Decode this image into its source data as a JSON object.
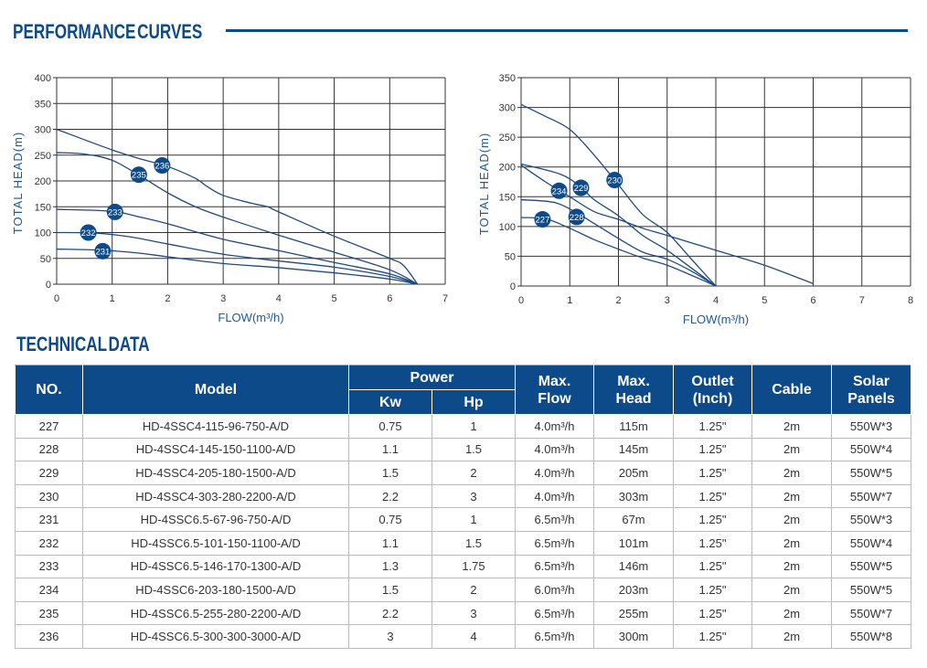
{
  "titles": {
    "performance": "PERFORMANCE CURVES",
    "technical": "TECHNICAL DATA"
  },
  "colors": {
    "primary": "#0d4a8a",
    "line": "#1f4a80"
  },
  "chart_data": [
    {
      "type": "line",
      "xlabel": "FLOW(m³/h)",
      "ylabel": "TOTAL HEAD(m)",
      "xlim": [
        0,
        7
      ],
      "ylim": [
        0,
        400
      ],
      "xticks": [
        0,
        1,
        2,
        3,
        4,
        5,
        6,
        7
      ],
      "yticks": [
        0,
        50,
        100,
        150,
        200,
        250,
        300,
        350,
        400
      ],
      "grid": true,
      "series": [
        {
          "name": "236",
          "badge": [
            1.9,
            230
          ],
          "points": [
            [
              0,
              300
            ],
            [
              1,
              260
            ],
            [
              1.5,
              243
            ],
            [
              2,
              228
            ],
            [
              2.5,
              205
            ],
            [
              2.7,
              190
            ],
            [
              3,
              172
            ],
            [
              3.5,
              157
            ],
            [
              3.8,
              150
            ],
            [
              4,
              140
            ],
            [
              5,
              93
            ],
            [
              6,
              50
            ],
            [
              6.25,
              36
            ],
            [
              6.5,
              0
            ]
          ]
        },
        {
          "name": "235",
          "badge": [
            1.48,
            212
          ],
          "points": [
            [
              0,
              255
            ],
            [
              0.5,
              252
            ],
            [
              1,
              240
            ],
            [
              1.5,
              210
            ],
            [
              2,
              177
            ],
            [
              2.5,
              150
            ],
            [
              3,
              130
            ],
            [
              4,
              95
            ],
            [
              5,
              62
            ],
            [
              6,
              28
            ],
            [
              6.5,
              0
            ]
          ]
        },
        {
          "name": "233",
          "badge": [
            1.05,
            140
          ],
          "points": [
            [
              0,
              145
            ],
            [
              1,
              141
            ],
            [
              1.5,
              130
            ],
            [
              2,
              117
            ],
            [
              3,
              87
            ],
            [
              4,
              65
            ],
            [
              5,
              42
            ],
            [
              6,
              20
            ],
            [
              6.5,
              0
            ]
          ]
        },
        {
          "name": "232",
          "badge": [
            0.57,
            100
          ],
          "points": [
            [
              0,
              100
            ],
            [
              0.7,
              99
            ],
            [
              1.3,
              92
            ],
            [
              2,
              78
            ],
            [
              3,
              58
            ],
            [
              4,
              45
            ],
            [
              5,
              33
            ],
            [
              6,
              15
            ],
            [
              6.5,
              0
            ]
          ]
        },
        {
          "name": "231",
          "badge": [
            0.83,
            64
          ],
          "points": [
            [
              0,
              68
            ],
            [
              0.8,
              66
            ],
            [
              1.5,
              60
            ],
            [
              2,
              53
            ],
            [
              3,
              40
            ],
            [
              4,
              32
            ],
            [
              5,
              22
            ],
            [
              6,
              10
            ],
            [
              6.5,
              0
            ]
          ]
        }
      ]
    },
    {
      "type": "line",
      "xlabel": "FLOW(m³/h)",
      "ylabel": "TOTAL HEAD(m)",
      "xlim": [
        0,
        8
      ],
      "ylim": [
        0,
        350
      ],
      "xticks": [
        0,
        1,
        2,
        3,
        4,
        5,
        6,
        7,
        8
      ],
      "yticks": [
        0,
        50,
        100,
        150,
        200,
        250,
        300,
        350
      ],
      "grid": true,
      "series": [
        {
          "name": "230",
          "badge": [
            1.92,
            178
          ],
          "points": [
            [
              0,
              305
            ],
            [
              0.5,
              285
            ],
            [
              1,
              263
            ],
            [
              1.5,
              220
            ],
            [
              2,
              170
            ],
            [
              2.5,
              120
            ],
            [
              3,
              90
            ],
            [
              3.5,
              45
            ],
            [
              4,
              0
            ]
          ]
        },
        {
          "name": "229",
          "badge": [
            1.23,
            165
          ],
          "points": [
            [
              0,
              205
            ],
            [
              0.8,
              188
            ],
            [
              1.2,
              168
            ],
            [
              1.5,
              145
            ],
            [
              2,
              118
            ],
            [
              2.5,
              85
            ],
            [
              3,
              60
            ],
            [
              3.5,
              30
            ],
            [
              4,
              0
            ]
          ]
        },
        {
          "name": "234",
          "badge": [
            0.78,
            160
          ],
          "points": [
            [
              0,
              203
            ],
            [
              0.5,
              175
            ],
            [
              1,
              150
            ],
            [
              1.5,
              125
            ],
            [
              2,
              112
            ],
            [
              2.5,
              97
            ],
            [
              3,
              85
            ],
            [
              4,
              60
            ],
            [
              5,
              35
            ],
            [
              6,
              4
            ]
          ]
        },
        {
          "name": "228",
          "badge": [
            1.14,
            116
          ],
          "points": [
            [
              0,
              145
            ],
            [
              0.7,
              140
            ],
            [
              1.2,
              120
            ],
            [
              1.5,
              105
            ],
            [
              2,
              80
            ],
            [
              2.5,
              57
            ],
            [
              3,
              45
            ],
            [
              3.5,
              25
            ],
            [
              4,
              0
            ]
          ]
        },
        {
          "name": "227",
          "badge": [
            0.44,
            112
          ],
          "points": [
            [
              0,
              115
            ],
            [
              0.5,
              113
            ],
            [
              1,
              97
            ],
            [
              1.5,
              78
            ],
            [
              2,
              62
            ],
            [
              2.5,
              47
            ],
            [
              3,
              35
            ],
            [
              3.5,
              18
            ],
            [
              4,
              0
            ]
          ]
        }
      ]
    }
  ],
  "table": {
    "headers": {
      "no": "NO.",
      "model": "Model",
      "power": "Power",
      "kw": "Kw",
      "hp": "Hp",
      "flow": "Max.\nFlow",
      "head": "Max.\nHead",
      "outlet": "Outlet\n(Inch)",
      "cable": "Cable",
      "solar": "Solar\nPanels"
    },
    "rows": [
      [
        "227",
        "HD-4SSC4-115-96-750-A/D",
        "0.75",
        "1",
        "4.0m³/h",
        "115m",
        "1.25\"",
        "2m",
        "550W*3"
      ],
      [
        "228",
        "HD-4SSC4-145-150-1100-A/D",
        "1.1",
        "1.5",
        "4.0m³/h",
        "145m",
        "1.25\"",
        "2m",
        "550W*4"
      ],
      [
        "229",
        "HD-4SSC4-205-180-1500-A/D",
        "1.5",
        "2",
        "4.0m³/h",
        "205m",
        "1.25\"",
        "2m",
        "550W*5"
      ],
      [
        "230",
        "HD-4SSC4-303-280-2200-A/D",
        "2.2",
        "3",
        "4.0m³/h",
        "303m",
        "1.25\"",
        "2m",
        "550W*7"
      ],
      [
        "231",
        "HD-4SSC6.5-67-96-750-A/D",
        "0.75",
        "1",
        "6.5m³/h",
        "67m",
        "1.25\"",
        "2m",
        "550W*3"
      ],
      [
        "232",
        "HD-4SSC6.5-101-150-1100-A/D",
        "1.1",
        "1.5",
        "6.5m³/h",
        "101m",
        "1.25\"",
        "2m",
        "550W*4"
      ],
      [
        "233",
        "HD-4SSC6.5-146-170-1300-A/D",
        "1.3",
        "1.75",
        "6.5m³/h",
        "146m",
        "1.25\"",
        "2m",
        "550W*5"
      ],
      [
        "234",
        "HD-4SSC6-203-180-1500-A/D",
        "1.5",
        "2",
        "6.0m³/h",
        "203m",
        "1.25\"",
        "2m",
        "550W*5"
      ],
      [
        "235",
        "HD-4SSC6.5-255-280-2200-A/D",
        "2.2",
        "3",
        "6.5m³/h",
        "255m",
        "1.25\"",
        "2m",
        "550W*7"
      ],
      [
        "236",
        "HD-4SSC6.5-300-300-3000-A/D",
        "3",
        "4",
        "6.5m³/h",
        "300m",
        "1.25\"",
        "2m",
        "550W*8"
      ]
    ]
  }
}
